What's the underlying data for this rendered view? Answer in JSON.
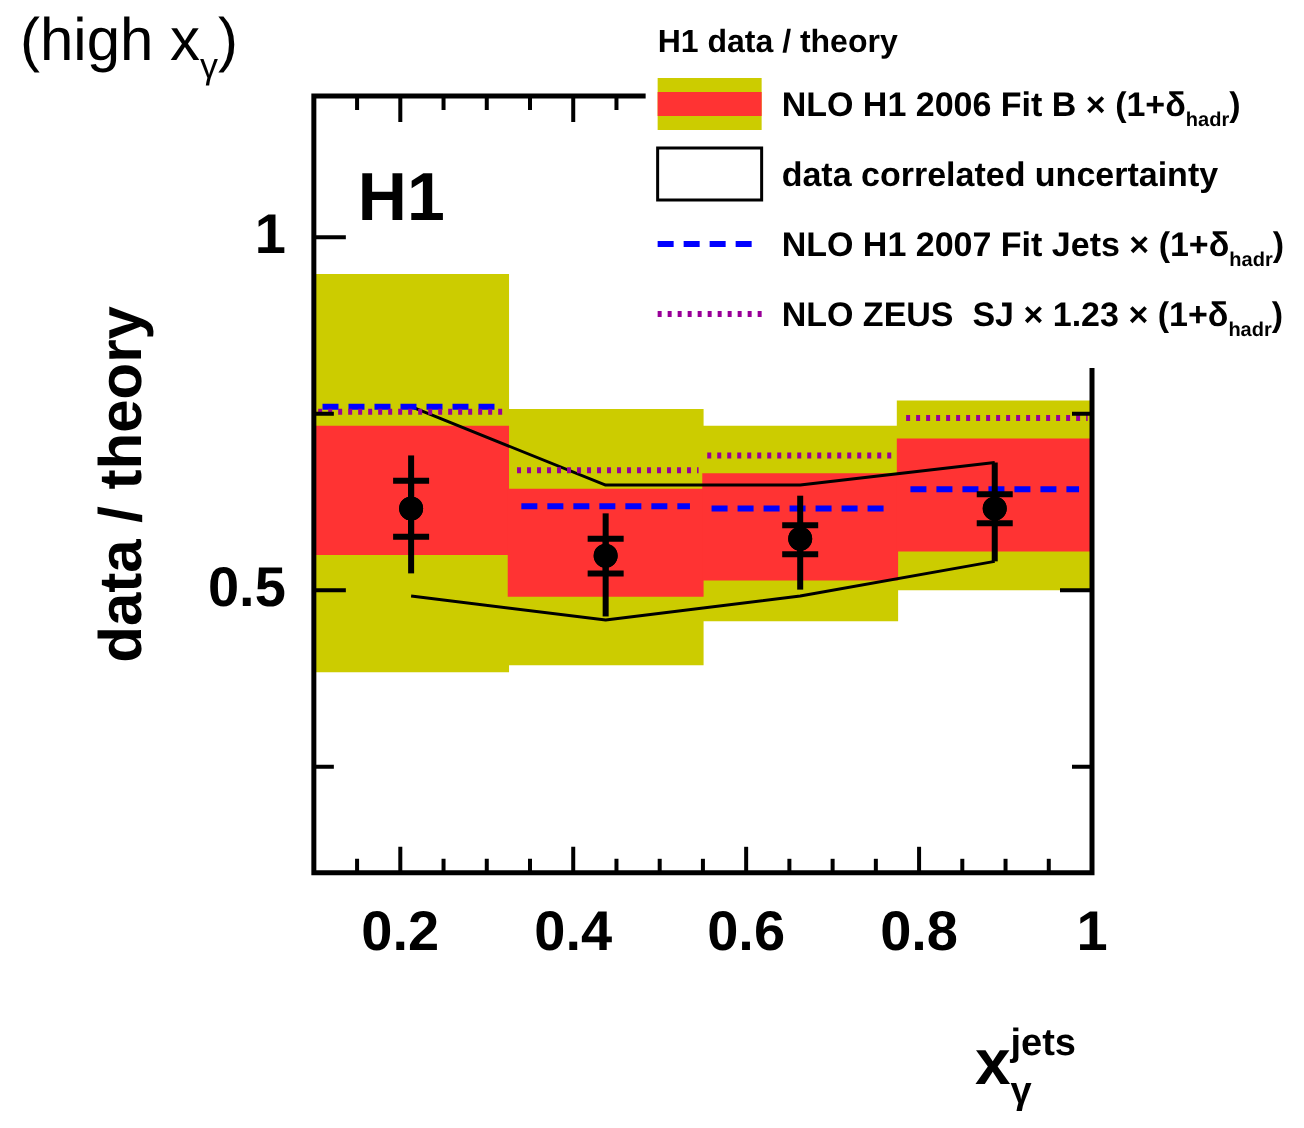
{
  "chart_data": {
    "type": "bar",
    "title": "(high x$_{γ}$)",
    "legend_title": "H1 data / theory",
    "xlabel": "x$_{γ}$$^{jets}$",
    "ylabel": "data / theory",
    "annotations": [
      "H1"
    ],
    "xlim": [
      0.1,
      1
    ],
    "ylim": [
      0.1,
      1.2
    ],
    "xticks": [
      {
        "value": 0.15,
        "label": null
      },
      0.2,
      {
        "value": 0.25,
        "label": null
      },
      {
        "value": 0.3,
        "label": null
      },
      {
        "value": 0.35,
        "label": null
      },
      0.4,
      {
        "value": 0.45,
        "label": null
      },
      {
        "value": 0.5,
        "label": null
      },
      {
        "value": 0.55,
        "label": null
      },
      0.6,
      {
        "value": 0.65,
        "label": null
      },
      {
        "value": 0.7,
        "label": null
      },
      {
        "value": 0.75,
        "label": null
      },
      0.8,
      {
        "value": 0.85,
        "label": null
      },
      {
        "value": 0.9,
        "label": null
      },
      {
        "value": 0.95,
        "label": null
      },
      1
    ],
    "yticks": [
      {
        "value": 0.25,
        "label": null
      },
      0.5,
      {
        "value": 0.75,
        "label": null
      },
      1
    ],
    "grid": false,
    "legend": "top right",
    "series": [
      {
        "name": "NLO H1 2006 Fit B × (1+δ$_{hadr}$)",
        "color": "#cccc00",
        "x": [
          0.2125,
          0.4375,
          0.6625,
          0.8875
        ],
        "base": [
          0.385,
          0.395,
          0.457,
          0.501
        ],
        "values": [
          0.562,
          0.361,
          0.275,
          0.267
        ]
      },
      {
        "color": "#ff3333",
        "x": [
          0.2125,
          0.4375,
          0.6625,
          0.8875
        ],
        "base": [
          0.551,
          0.492,
          0.515,
          0.556
        ],
        "values": [
          0.181,
          0.151,
          0.15,
          0.158
        ]
      },
      {
        "type": "line",
        "name": "data correlated uncertainty",
        "color": "#000000",
        "line_style": "solid",
        "x": [
          0.2125,
          0.4375,
          0.6625,
          0.8875
        ],
        "values": [
          0.76,
          0.649,
          0.649,
          0.681
        ]
      },
      {
        "type": "line",
        "color": "#000000",
        "line_style": "solid",
        "x": [
          0.2125,
          0.4375,
          0.6625,
          0.8875
        ],
        "values": [
          0.492,
          0.458,
          0.492,
          0.541
        ]
      },
      {
        "type": "line",
        "name": "NLO H1 2007 Fit Jets × (1+δ$_{hadr}$)",
        "color": "#0000ff",
        "line_style": "dashed",
        "x": [
          0.11,
          0.32,
          0.33,
          0.34,
          0.535,
          0.55,
          0.56,
          0.76,
          0.78,
          0.79,
          0.985
        ],
        "values": [
          0.76,
          0.76,
          null,
          0.619,
          0.619,
          null,
          0.616,
          0.616,
          null,
          0.643,
          0.643
        ]
      },
      {
        "type": "line",
        "name": "NLO ZEUS  SJ × 1.23 × (1+δ$_{hadr}$)",
        "color": "#990099",
        "line_style": "dotted",
        "x": [
          0.105,
          0.32,
          0.33,
          0.335,
          0.545,
          0.55,
          0.555,
          0.77,
          0.78,
          0.785,
          0.995
        ],
        "values": [
          0.753,
          0.753,
          null,
          0.67,
          0.67,
          null,
          0.691,
          0.691,
          null,
          0.744,
          0.744
        ]
      },
      {
        "type": "scatter",
        "color": "#000000",
        "marker": "circle",
        "x": [
          0.2125,
          0.4375,
          0.6625,
          0.8875
        ],
        "values": [
          0.616,
          0.549,
          0.573,
          0.616
        ],
        "errors": [
          [
            0.576,
            0.655
          ],
          [
            0.524,
            0.573
          ],
          [
            0.551,
            0.592
          ],
          [
            0.595,
            0.636
          ]
        ]
      },
      {
        "type": "scatter",
        "color": "#000000",
        "marker": "circle",
        "x": [
          0.2125,
          0.4375,
          0.6625,
          0.8875
        ],
        "values": [
          0.616,
          0.549,
          0.573,
          0.616
        ],
        "errors": [
          [
            0.524,
            0.691
          ],
          [
            0.463,
            0.609
          ],
          [
            0.501,
            0.634
          ],
          [
            0.541,
            0.681
          ]
        ]
      }
    ]
  }
}
